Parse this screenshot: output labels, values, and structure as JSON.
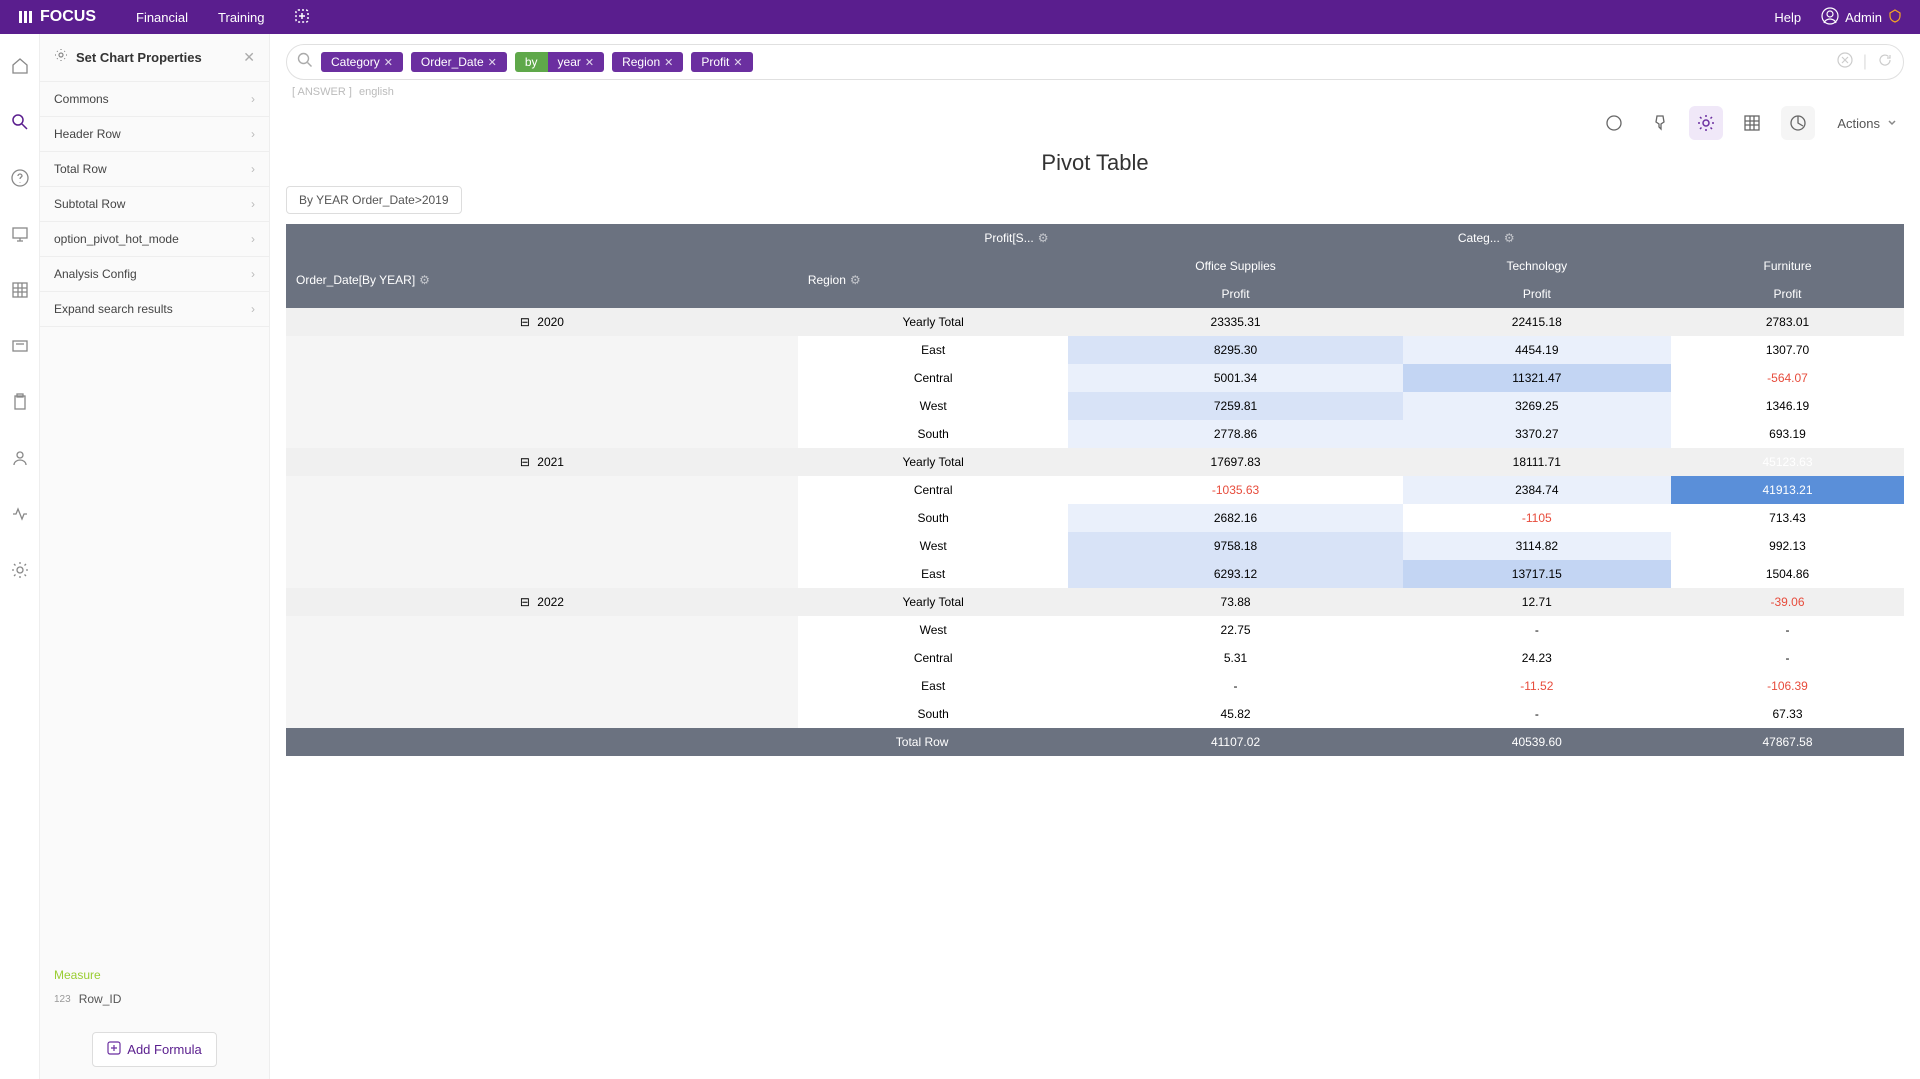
{
  "topbar": {
    "logo": "FOCUS",
    "nav": [
      "Financial",
      "Training"
    ],
    "help": "Help",
    "user": "Admin"
  },
  "sidebar": {
    "title": "Set Chart Properties",
    "items": [
      "Commons",
      "Header Row",
      "Total Row",
      "Subtotal Row",
      "option_pivot_hot_mode",
      "Analysis Config",
      "Expand search results"
    ],
    "measure_label": "Measure",
    "rowid_label": "Row_ID",
    "rowid_type": "123",
    "add_formula": "Add Formula"
  },
  "searchbar": {
    "pills": [
      {
        "label": "Category",
        "style": "purple"
      },
      {
        "label": "Order_Date",
        "style": "purple"
      },
      {
        "prefix": "by",
        "label": "year",
        "style": "split"
      },
      {
        "label": "Region",
        "style": "purple"
      },
      {
        "label": "Profit",
        "style": "purple"
      }
    ],
    "answer_prefix": "[ ANSWER ]",
    "answer_lang": "english"
  },
  "actionbar": {
    "actions_label": "Actions"
  },
  "chart": {
    "title": "Pivot Table",
    "filter_chip": "By YEAR Order_Date>2019",
    "header": {
      "profit_col": "Profit[S...",
      "categ_col": "Categ...",
      "dim1": "Order_Date[By YEAR]",
      "dim2": "Region",
      "categories": [
        "Office Supplies",
        "Technology",
        "Furniture"
      ],
      "measure": "Profit"
    },
    "years": [
      {
        "year": "2020",
        "yearly_total_label": "Yearly Total",
        "totals": [
          {
            "v": "23335.31",
            "heat": "h4"
          },
          {
            "v": "22415.18",
            "heat": "h4"
          },
          {
            "v": "2783.01",
            "heat": "h0"
          }
        ],
        "rows": [
          {
            "region": "East",
            "cells": [
              {
                "v": "8295.30",
                "heat": "h2"
              },
              {
                "v": "4454.19",
                "heat": "h1"
              },
              {
                "v": "1307.70",
                "heat": "h0"
              }
            ]
          },
          {
            "region": "Central",
            "cells": [
              {
                "v": "5001.34",
                "heat": "h1"
              },
              {
                "v": "11321.47",
                "heat": "h3"
              },
              {
                "v": "-564.07",
                "heat": "h0",
                "neg": true
              }
            ]
          },
          {
            "region": "West",
            "cells": [
              {
                "v": "7259.81",
                "heat": "h2"
              },
              {
                "v": "3269.25",
                "heat": "h1"
              },
              {
                "v": "1346.19",
                "heat": "h0"
              }
            ]
          },
          {
            "region": "South",
            "cells": [
              {
                "v": "2778.86",
                "heat": "h1"
              },
              {
                "v": "3370.27",
                "heat": "h1"
              },
              {
                "v": "693.19",
                "heat": "h0"
              }
            ]
          }
        ]
      },
      {
        "year": "2021",
        "yearly_total_label": "Yearly Total",
        "totals": [
          {
            "v": "17697.83",
            "heat": "h3"
          },
          {
            "v": "18111.71",
            "heat": "h3"
          },
          {
            "v": "45123.63",
            "heat": "h5"
          }
        ],
        "rows": [
          {
            "region": "Central",
            "cells": [
              {
                "v": "-1035.63",
                "heat": "h0",
                "neg": true
              },
              {
                "v": "2384.74",
                "heat": "h1"
              },
              {
                "v": "41913.21",
                "heat": "h5"
              }
            ]
          },
          {
            "region": "South",
            "cells": [
              {
                "v": "2682.16",
                "heat": "h1"
              },
              {
                "v": "-1105",
                "heat": "h0",
                "neg": true
              },
              {
                "v": "713.43",
                "heat": "h0"
              }
            ]
          },
          {
            "region": "West",
            "cells": [
              {
                "v": "9758.18",
                "heat": "h2"
              },
              {
                "v": "3114.82",
                "heat": "h1"
              },
              {
                "v": "992.13",
                "heat": "h0"
              }
            ]
          },
          {
            "region": "East",
            "cells": [
              {
                "v": "6293.12",
                "heat": "h2"
              },
              {
                "v": "13717.15",
                "heat": "h3"
              },
              {
                "v": "1504.86",
                "heat": "h0"
              }
            ]
          }
        ]
      },
      {
        "year": "2022",
        "yearly_total_label": "Yearly Total",
        "totals": [
          {
            "v": "73.88",
            "heat": "h0"
          },
          {
            "v": "12.71",
            "heat": "h0"
          },
          {
            "v": "-39.06",
            "heat": "h0",
            "neg": true
          }
        ],
        "rows": [
          {
            "region": "West",
            "cells": [
              {
                "v": "22.75",
                "heat": "h0"
              },
              {
                "v": "-",
                "heat": "h0"
              },
              {
                "v": "-",
                "heat": "h0"
              }
            ]
          },
          {
            "region": "Central",
            "cells": [
              {
                "v": "5.31",
                "heat": "h0"
              },
              {
                "v": "24.23",
                "heat": "h0"
              },
              {
                "v": "-",
                "heat": "h0"
              }
            ]
          },
          {
            "region": "East",
            "cells": [
              {
                "v": "-",
                "heat": "h0"
              },
              {
                "v": "-11.52",
                "heat": "h0",
                "neg": true
              },
              {
                "v": "-106.39",
                "heat": "h0",
                "neg": true
              }
            ]
          },
          {
            "region": "South",
            "cells": [
              {
                "v": "45.82",
                "heat": "h0"
              },
              {
                "v": "-",
                "heat": "h0"
              },
              {
                "v": "67.33",
                "heat": "h0"
              }
            ]
          }
        ]
      }
    ],
    "total_row_label": "Total Row",
    "grand_totals": [
      "41107.02",
      "40539.60",
      "47867.58"
    ]
  },
  "colors": {
    "brand": "#5a1e8e",
    "header_bg": "#6b7280",
    "pill_green": "#5fa84a",
    "neg": "#e74c3c"
  }
}
